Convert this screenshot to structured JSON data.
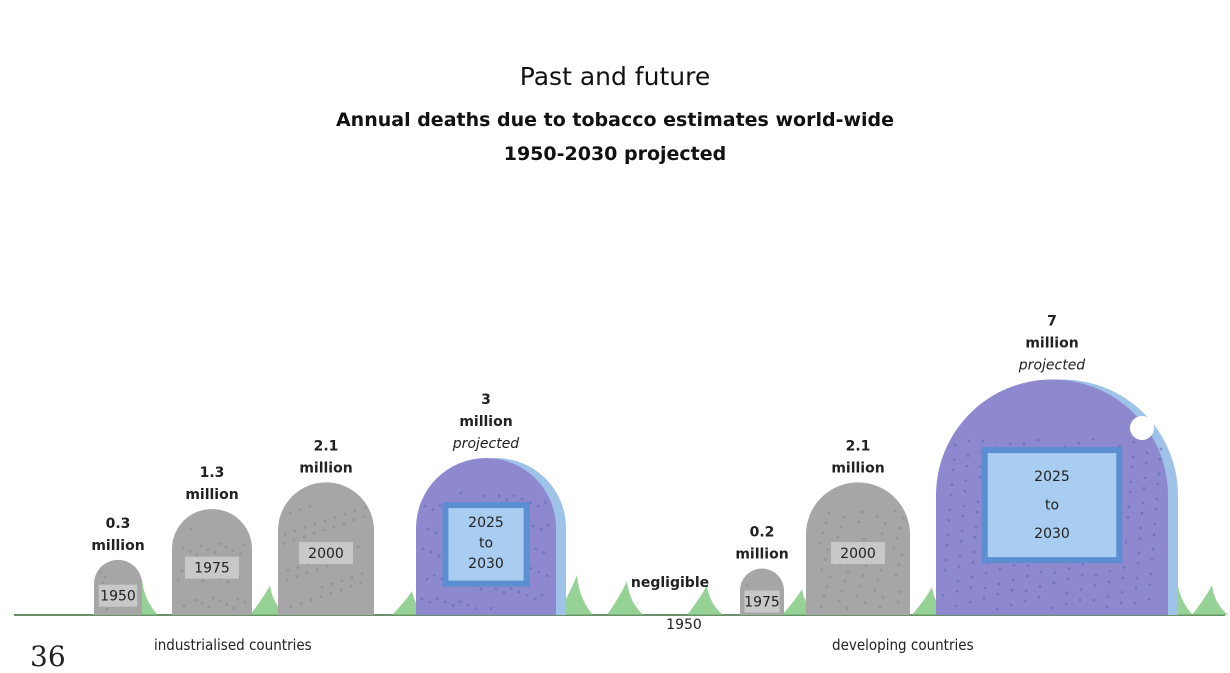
{
  "page_number": "36",
  "chart_data": {
    "type": "bar",
    "title": "Past and future",
    "subtitle": "Annual deaths due to tobacco estimates world-wide",
    "subtitle2": "1950-2030 projected",
    "unit": "million",
    "groups": [
      {
        "name": "industrialised countries",
        "bars": [
          {
            "category": "1950",
            "value": 0.3,
            "value_text": "0.3",
            "unit_text": "million",
            "projected": false
          },
          {
            "category": "1975",
            "value": 1.3,
            "value_text": "1.3",
            "unit_text": "million",
            "projected": false
          },
          {
            "category": "2000",
            "value": 2.1,
            "value_text": "2.1",
            "unit_text": "million",
            "projected": false
          },
          {
            "category": "2025 to 2030",
            "cat_lines": [
              "2025",
              "to",
              "2030"
            ],
            "value": 3,
            "value_text": "3",
            "unit_text": "million",
            "projected": true,
            "projected_text": "projected"
          }
        ]
      },
      {
        "name": "developing countries",
        "bars": [
          {
            "category": "1950",
            "value": 0,
            "value_text": "negligible",
            "unit_text": "",
            "projected": false
          },
          {
            "category": "1975",
            "value": 0.2,
            "value_text": "0.2",
            "unit_text": "million",
            "projected": false
          },
          {
            "category": "2000",
            "value": 2.1,
            "value_text": "2.1",
            "unit_text": "million",
            "projected": false
          },
          {
            "category": "2025 to 2030",
            "cat_lines": [
              "2025",
              "to",
              "2030"
            ],
            "value": 7,
            "value_text": "7",
            "unit_text": "million",
            "projected": true,
            "projected_text": "projected"
          }
        ]
      }
    ],
    "colors": {
      "stone_past": "#a6a6a6",
      "stone_projected": "#8e89cf",
      "stone_projected_shade": "#9fc3e8",
      "plaque_past": "#c8c8c8",
      "plaque_projected": "#a9cdf0",
      "plaque_projected_border": "#5b8fd1",
      "grass": "#7cc67a",
      "ground": "#6b8f6b"
    }
  }
}
